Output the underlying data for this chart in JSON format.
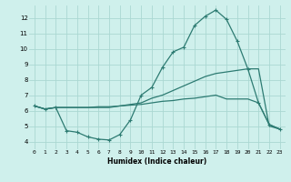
{
  "xlabel": "Humidex (Indice chaleur)",
  "xlim": [
    -0.5,
    23.5
  ],
  "ylim": [
    3.5,
    12.8
  ],
  "yticks": [
    4,
    5,
    6,
    7,
    8,
    9,
    10,
    11,
    12
  ],
  "xticks": [
    0,
    1,
    2,
    3,
    4,
    5,
    6,
    7,
    8,
    9,
    10,
    11,
    12,
    13,
    14,
    15,
    16,
    17,
    18,
    19,
    20,
    21,
    22,
    23
  ],
  "bg_color": "#cff0ec",
  "grid_color": "#aad8d2",
  "line_color": "#2d7b72",
  "line1_x": [
    0,
    1,
    2,
    3,
    4,
    5,
    6,
    7,
    8,
    9,
    10,
    11,
    12,
    13,
    14,
    15,
    16,
    17,
    18,
    19,
    20,
    21,
    22,
    23
  ],
  "line1_y": [
    6.3,
    6.1,
    6.2,
    4.7,
    4.6,
    4.3,
    4.15,
    4.1,
    4.45,
    5.4,
    7.0,
    7.5,
    8.8,
    9.8,
    10.1,
    11.5,
    12.1,
    12.5,
    11.9,
    10.5,
    8.7,
    6.5,
    5.1,
    4.8
  ],
  "line2_x": [
    0,
    1,
    2,
    3,
    4,
    5,
    6,
    7,
    8,
    9,
    10,
    11,
    12,
    13,
    14,
    15,
    16,
    17,
    18,
    19,
    20,
    21,
    22,
    23
  ],
  "line2_y": [
    6.3,
    6.1,
    6.2,
    6.2,
    6.2,
    6.2,
    6.2,
    6.2,
    6.3,
    6.4,
    6.5,
    6.8,
    7.0,
    7.3,
    7.6,
    7.9,
    8.2,
    8.4,
    8.5,
    8.6,
    8.7,
    8.7,
    5.0,
    4.8
  ],
  "line3_x": [
    0,
    1,
    2,
    3,
    4,
    5,
    6,
    7,
    8,
    9,
    10,
    11,
    12,
    13,
    14,
    15,
    16,
    17,
    18,
    19,
    20,
    21,
    22,
    23
  ],
  "line3_y": [
    6.3,
    6.1,
    6.2,
    6.2,
    6.2,
    6.2,
    6.25,
    6.25,
    6.3,
    6.35,
    6.4,
    6.5,
    6.6,
    6.65,
    6.75,
    6.8,
    6.9,
    7.0,
    6.75,
    6.75,
    6.75,
    6.5,
    5.1,
    4.8
  ]
}
